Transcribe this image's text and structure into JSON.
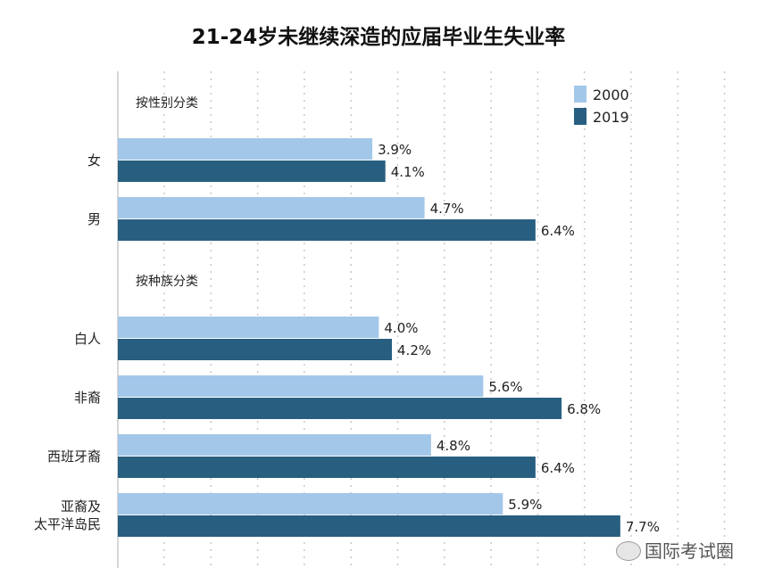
{
  "chart_data": {
    "type": "bar",
    "orientation": "horizontal",
    "title": "21-24岁未继续深造的应届毕业生失业率",
    "groups": [
      {
        "label": "按性别分类",
        "categories": [
          "女",
          "男"
        ]
      },
      {
        "label": "按种族分类",
        "categories": [
          "白人",
          "非裔",
          "西班牙裔",
          "亚裔及\n太平洋岛民"
        ]
      }
    ],
    "categories": [
      "女",
      "男",
      "白人",
      "非裔",
      "西班牙裔",
      "亚裔及\n太平洋岛民"
    ],
    "series": [
      {
        "name": "2000",
        "color": "#a3c7e8",
        "values": [
          3.9,
          4.7,
          4.0,
          5.6,
          4.8,
          5.9
        ],
        "labels": [
          "3.9%",
          "4.7%",
          "4.0%",
          "5.6%",
          "4.8%",
          "5.9%"
        ]
      },
      {
        "name": "2019",
        "color": "#285f80",
        "values": [
          4.1,
          6.4,
          4.2,
          6.8,
          6.4,
          7.7
        ],
        "labels": [
          "4.1%",
          "6.4%",
          "4.2%",
          "6.8%",
          "6.4%",
          "7.7%"
        ]
      }
    ],
    "xlim": [
      0,
      9.5
    ],
    "grid": true,
    "legend": "top-right",
    "unit": "%"
  },
  "watermark": "国际考试圈"
}
